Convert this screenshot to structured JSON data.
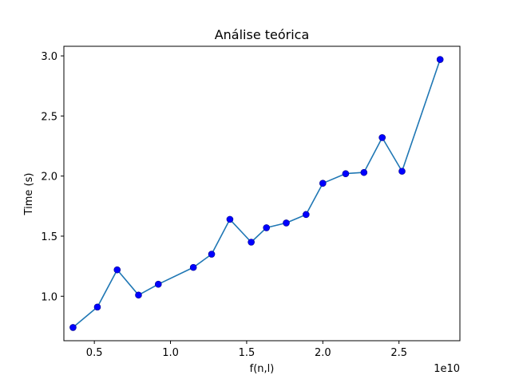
{
  "chart_data": {
    "type": "line",
    "title": "Análise teórica",
    "xlabel": "f(n,l)",
    "ylabel": "Time (s)",
    "x_offset_label": "1e10",
    "x_scale": 10000000000,
    "xlim": [
      3000000000,
      29000000000
    ],
    "ylim": [
      0.63,
      3.08
    ],
    "grid": false,
    "x_ticks": [
      {
        "value": 5000000000,
        "label": "0.5"
      },
      {
        "value": 10000000000,
        "label": "1.0"
      },
      {
        "value": 15000000000,
        "label": "1.5"
      },
      {
        "value": 20000000000,
        "label": "2.0"
      },
      {
        "value": 25000000000,
        "label": "2.5"
      }
    ],
    "y_ticks": [
      {
        "value": 1.0,
        "label": "1.0"
      },
      {
        "value": 1.5,
        "label": "1.5"
      },
      {
        "value": 2.0,
        "label": "2.0"
      },
      {
        "value": 2.5,
        "label": "2.5"
      },
      {
        "value": 3.0,
        "label": "3.0"
      }
    ],
    "series": [
      {
        "line_color": "#1f77b4",
        "marker_color": "#0000ff",
        "x": [
          3600000000,
          5200000000,
          6500000000,
          7900000000,
          9200000000,
          11500000000,
          12700000000,
          13900000000,
          15300000000,
          16300000000,
          17600000000,
          18900000000,
          20000000000,
          21500000000,
          22700000000,
          23900000000,
          25200000000,
          27700000000
        ],
        "y": [
          0.74,
          0.91,
          1.22,
          1.01,
          1.1,
          1.24,
          1.35,
          1.64,
          1.45,
          1.57,
          1.61,
          1.68,
          1.94,
          2.02,
          2.03,
          2.32,
          2.04,
          2.97
        ]
      }
    ]
  }
}
